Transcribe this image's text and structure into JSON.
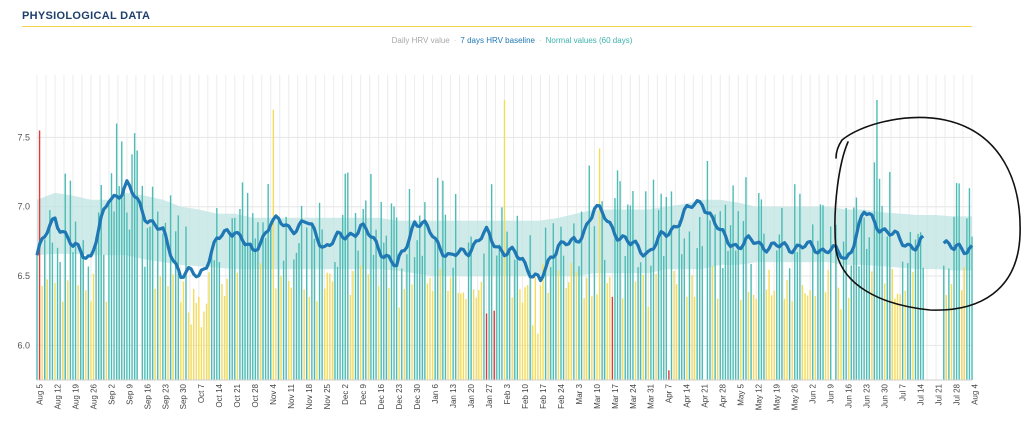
{
  "header": {
    "title": "PHYSIOLOGICAL DATA"
  },
  "colors": {
    "title": "#1f3f6a",
    "accent_rule": "#f2d54a",
    "bar_normal": "#4dbcb6",
    "bar_low": "#f3dc5c",
    "bar_flag": "#e03a3a",
    "baseline": "#1f78b4",
    "band": "#bfe4e1",
    "annotation": "#111111"
  },
  "chart_data": {
    "type": "bar",
    "legend": {
      "position": "top-center",
      "items": [
        {
          "label": "Daily HRV value",
          "color": "#a9a9a9"
        },
        {
          "label": "7 days HRV baseline",
          "color": "#1f78b4"
        },
        {
          "label": "Normal values (60 days)",
          "color": "#4dbcb6"
        }
      ]
    },
    "x_tick_labels": [
      "Aug 5",
      "Aug 12",
      "Aug 19",
      "Aug 26",
      "Sep 2",
      "Sep 9",
      "Sep 16",
      "Sep 23",
      "Sep 30",
      "Oct 7",
      "Oct 14",
      "Oct 21",
      "Oct 28",
      "Nov 4",
      "Nov 11",
      "Nov 18",
      "Nov 25",
      "Dec 2",
      "Dec 9",
      "Dec 16",
      "Dec 23",
      "Dec 30",
      "Jan 6",
      "Jan 13",
      "Jan 20",
      "Jan 27",
      "Feb 3",
      "Feb 10",
      "Feb 17",
      "Feb 24",
      "Mar 3",
      "Mar 10",
      "Mar 17",
      "Mar 24",
      "Mar 31",
      "Apr 7",
      "Apr 14",
      "Apr 21",
      "Apr 28",
      "May 5",
      "May 12",
      "May 19",
      "May 26",
      "Jun 2",
      "Jun 9",
      "Jun 16",
      "Jun 23",
      "Jun 30",
      "Jul 7",
      "Jul 14",
      "Jul 21",
      "Jul 28",
      "Aug 4"
    ],
    "y_ticks": [
      6.0,
      6.5,
      7.0,
      7.5
    ],
    "ylim": [
      5.75,
      7.95
    ],
    "grid": true,
    "series": [
      {
        "name": "7 days HRV baseline",
        "type": "line",
        "weekly_values": [
          6.65,
          6.93,
          6.7,
          6.65,
          7.05,
          7.15,
          6.95,
          6.8,
          6.52,
          6.5,
          6.75,
          6.85,
          6.65,
          6.9,
          6.85,
          6.88,
          6.72,
          6.78,
          6.85,
          6.72,
          6.55,
          6.9,
          6.8,
          6.62,
          6.7,
          6.8,
          6.68,
          6.62,
          6.45,
          6.75,
          6.72,
          7.0,
          6.85,
          6.72,
          6.68,
          6.8,
          6.95,
          7.05,
          6.8,
          6.72,
          6.75,
          6.7,
          6.72,
          6.7,
          6.7,
          6.62,
          6.95,
          6.85,
          6.75,
          6.72,
          6.8,
          6.68,
          6.72
        ]
      },
      {
        "name": "Normal values (60 days)",
        "type": "area",
        "weekly_upper": [
          7.05,
          7.1,
          7.08,
          7.05,
          7.05,
          7.1,
          7.08,
          7.05,
          7.0,
          6.98,
          6.95,
          6.95,
          6.92,
          6.92,
          6.92,
          6.92,
          6.92,
          6.92,
          6.92,
          6.92,
          6.9,
          6.9,
          6.9,
          6.9,
          6.9,
          6.9,
          6.9,
          6.9,
          6.9,
          6.92,
          6.95,
          6.98,
          6.98,
          6.98,
          6.98,
          7.0,
          7.02,
          7.05,
          7.05,
          7.03,
          7.0,
          7.0,
          7.0,
          7.0,
          7.0,
          6.98,
          6.98,
          6.96,
          6.95,
          6.94,
          6.94,
          6.93,
          6.93
        ],
        "weekly_lower": [
          6.65,
          6.66,
          6.66,
          6.65,
          6.65,
          6.65,
          6.62,
          6.6,
          6.58,
          6.57,
          6.56,
          6.55,
          6.55,
          6.55,
          6.55,
          6.55,
          6.55,
          6.55,
          6.55,
          6.55,
          6.54,
          6.52,
          6.5,
          6.5,
          6.5,
          6.5,
          6.5,
          6.5,
          6.5,
          6.5,
          6.5,
          6.52,
          6.52,
          6.52,
          6.52,
          6.55,
          6.55,
          6.55,
          6.58,
          6.58,
          6.6,
          6.6,
          6.6,
          6.6,
          6.6,
          6.58,
          6.58,
          6.57,
          6.56,
          6.55,
          6.55,
          6.54,
          6.54
        ]
      },
      {
        "name": "Daily HRV value",
        "type": "bar",
        "notes": "daily bars colored normal / low / flagged",
        "highlights": [
          {
            "day": 1,
            "value": 7.55,
            "status": "flag"
          },
          {
            "day": 175,
            "value": 6.23,
            "status": "flag"
          },
          {
            "day": 178,
            "value": 6.25,
            "status": "flag"
          },
          {
            "day": 182,
            "value": 7.77,
            "status": "low"
          },
          {
            "day": 219,
            "value": 7.42,
            "status": "low"
          },
          {
            "day": 224,
            "value": 6.35,
            "status": "flag"
          },
          {
            "day": 246,
            "value": 5.82,
            "status": "flag"
          },
          {
            "day": 92,
            "value": 7.7,
            "status": "low"
          },
          {
            "day": 327,
            "value": 7.77,
            "status": "normal"
          },
          {
            "day": 31,
            "value": 7.6,
            "status": "normal"
          },
          {
            "day": 378,
            "value": 7.38,
            "status": "normal"
          }
        ]
      }
    ]
  }
}
